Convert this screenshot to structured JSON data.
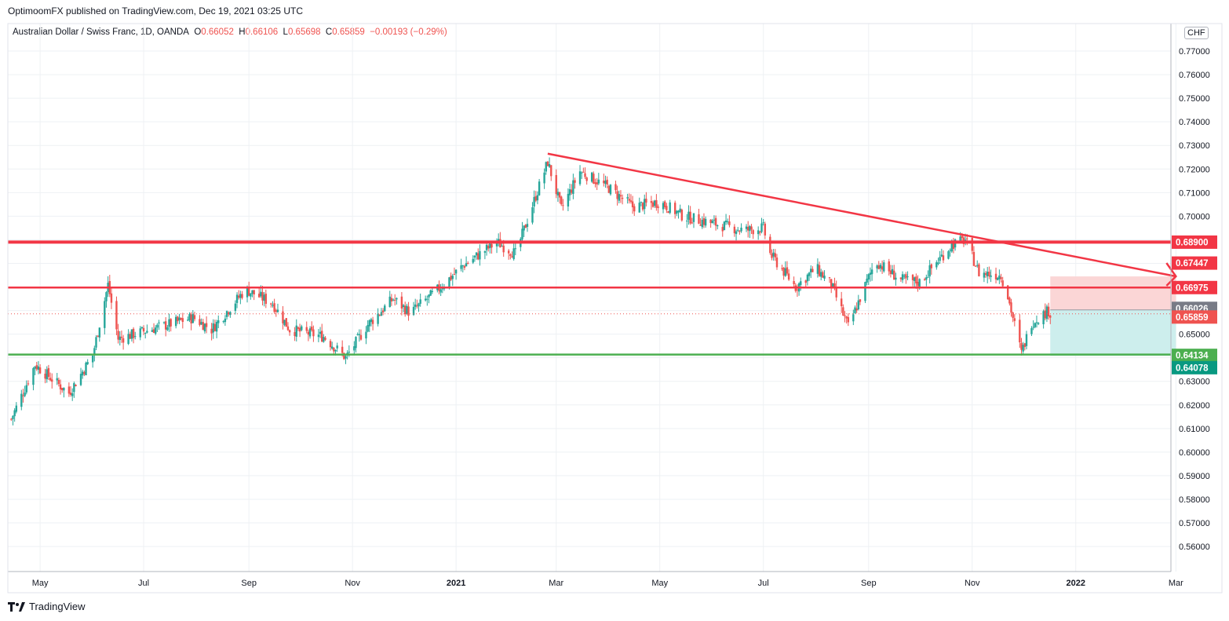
{
  "header": {
    "published": "OptimoomFX published on TradingView.com, Dec 19, 2021 03:25 UTC",
    "symbol": "Australian Dollar / Swiss Franc, 1D, OANDA",
    "open_label": "O",
    "open": "0.66052",
    "high_label": "H",
    "high": "0.66106",
    "low_label": "L",
    "low": "0.65698",
    "close_label": "C",
    "close": "0.65859",
    "change": "−0.00193 (−0.29%)"
  },
  "currency": "CHF",
  "footer": {
    "brand": "TradingView"
  },
  "colors": {
    "up": "#26a69a",
    "down": "#ef5350",
    "red_line": "#f23645",
    "green_line": "#4caf50",
    "grid": "#eef1f4",
    "target_zone": "#cdeeed",
    "stop_zone": "#fbd6d6"
  },
  "chart_data": {
    "type": "candlestick",
    "title": "Australian Dollar / Swiss Franc, 1D, OANDA",
    "x_ticks": [
      "May",
      "Jul",
      "Sep",
      "Nov",
      "2021",
      "Mar",
      "May",
      "Jul",
      "Sep",
      "Nov",
      "2022",
      "Mar"
    ],
    "y_ticks": [
      "0.77000",
      "0.76000",
      "0.75000",
      "0.74000",
      "0.73000",
      "0.72000",
      "0.71000",
      "0.70000",
      "0.69000",
      "0.68000",
      "0.67000",
      "0.66000",
      "0.65000",
      "0.64000",
      "0.63000",
      "0.62000",
      "0.61000",
      "0.60000",
      "0.59000",
      "0.58000",
      "0.57000",
      "0.56000"
    ],
    "ylim": [
      0.5545,
      0.7805
    ],
    "grid": true,
    "price_path": [
      {
        "x": "2020-04-14",
        "y": 0.614
      },
      {
        "x": "2020-04-28",
        "y": 0.637
      },
      {
        "x": "2020-05-18",
        "y": 0.625
      },
      {
        "x": "2020-06-01",
        "y": 0.641
      },
      {
        "x": "2020-06-10",
        "y": 0.671
      },
      {
        "x": "2020-06-16",
        "y": 0.648
      },
      {
        "x": "2020-06-30",
        "y": 0.651
      },
      {
        "x": "2020-07-15",
        "y": 0.654
      },
      {
        "x": "2020-07-30",
        "y": 0.657
      },
      {
        "x": "2020-08-10",
        "y": 0.652
      },
      {
        "x": "2020-08-30",
        "y": 0.669
      },
      {
        "x": "2020-09-15",
        "y": 0.663
      },
      {
        "x": "2020-09-25",
        "y": 0.652
      },
      {
        "x": "2020-10-15",
        "y": 0.649
      },
      {
        "x": "2020-10-28",
        "y": 0.64
      },
      {
        "x": "2020-11-10",
        "y": 0.654
      },
      {
        "x": "2020-11-25",
        "y": 0.665
      },
      {
        "x": "2020-12-05",
        "y": 0.659
      },
      {
        "x": "2020-12-20",
        "y": 0.668
      },
      {
        "x": "2021-01-05",
        "y": 0.679
      },
      {
        "x": "2021-01-25",
        "y": 0.689
      },
      {
        "x": "2021-02-05",
        "y": 0.684
      },
      {
        "x": "2021-02-24",
        "y": 0.723
      },
      {
        "x": "2021-03-04",
        "y": 0.703
      },
      {
        "x": "2021-03-15",
        "y": 0.719
      },
      {
        "x": "2021-04-01",
        "y": 0.712
      },
      {
        "x": "2021-04-15",
        "y": 0.704
      },
      {
        "x": "2021-05-01",
        "y": 0.706
      },
      {
        "x": "2021-05-15",
        "y": 0.7
      },
      {
        "x": "2021-06-01",
        "y": 0.697
      },
      {
        "x": "2021-06-20",
        "y": 0.694
      },
      {
        "x": "2021-07-01",
        "y": 0.695
      },
      {
        "x": "2021-07-05",
        "y": 0.684
      },
      {
        "x": "2021-07-20",
        "y": 0.67
      },
      {
        "x": "2021-08-01",
        "y": 0.678
      },
      {
        "x": "2021-08-10",
        "y": 0.671
      },
      {
        "x": "2021-08-20",
        "y": 0.653
      },
      {
        "x": "2021-09-05",
        "y": 0.681
      },
      {
        "x": "2021-09-20",
        "y": 0.673
      },
      {
        "x": "2021-10-01",
        "y": 0.672
      },
      {
        "x": "2021-10-20",
        "y": 0.688
      },
      {
        "x": "2021-10-28",
        "y": 0.69
      },
      {
        "x": "2021-11-05",
        "y": 0.676
      },
      {
        "x": "2021-11-18",
        "y": 0.675
      },
      {
        "x": "2021-11-22",
        "y": 0.666
      },
      {
        "x": "2021-11-30",
        "y": 0.642
      },
      {
        "x": "2021-12-06",
        "y": 0.655
      },
      {
        "x": "2021-12-16",
        "y": 0.66
      },
      {
        "x": "2021-12-17",
        "y": 0.6586
      }
    ],
    "horizontal_lines": [
      {
        "value": 0.689,
        "color": "#f23645"
      },
      {
        "value": 0.66975,
        "color": "#f23645"
      },
      {
        "value": 0.64134,
        "color": "#4caf50"
      }
    ],
    "trend_line": {
      "from": {
        "x": "2021-02-24",
        "y": 0.7265
      },
      "to": {
        "x": "2022-03-01",
        "y": 0.6745
      }
    },
    "position": {
      "entry": 0.66026,
      "stop": 0.67447,
      "target": 0.64078,
      "from": "2021-12-17",
      "to": "2022-03-01"
    },
    "price_labels": [
      "0.68900",
      "0.67447",
      "0.66975",
      "0.66026",
      "0.65859",
      "0.64134",
      "0.64078"
    ],
    "last_close": 0.65859
  }
}
